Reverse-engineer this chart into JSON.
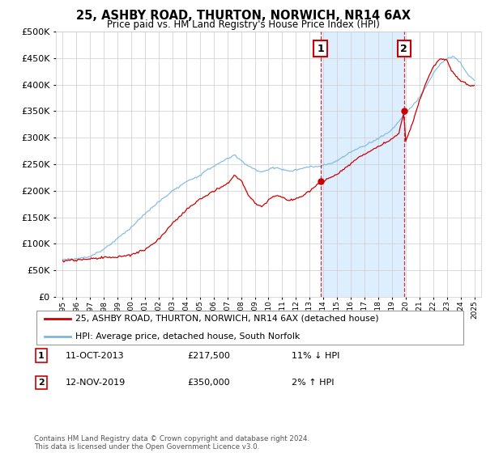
{
  "title": "25, ASHBY ROAD, THURTON, NORWICH, NR14 6AX",
  "subtitle": "Price paid vs. HM Land Registry's House Price Index (HPI)",
  "legend_line1": "25, ASHBY ROAD, THURTON, NORWICH, NR14 6AX (detached house)",
  "legend_line2": "HPI: Average price, detached house, South Norfolk",
  "annotation1_label": "1",
  "annotation1_date": "11-OCT-2013",
  "annotation1_price": "£217,500",
  "annotation1_hpi": "11% ↓ HPI",
  "annotation2_label": "2",
  "annotation2_date": "12-NOV-2019",
  "annotation2_price": "£350,000",
  "annotation2_hpi": "2% ↑ HPI",
  "footnote": "Contains HM Land Registry data © Crown copyright and database right 2024.\nThis data is licensed under the Open Government Licence v3.0.",
  "hpi_color": "#7ab8e0",
  "price_color": "#cc0000",
  "sale1_x": 2013.78,
  "sale1_y": 217500,
  "sale2_x": 2019.87,
  "sale2_y": 350000,
  "ylim": [
    0,
    500000
  ],
  "xlim": [
    1994.5,
    2025.5
  ],
  "yticks": [
    0,
    50000,
    100000,
    150000,
    200000,
    250000,
    300000,
    350000,
    400000,
    450000,
    500000
  ],
  "background_color": "#ffffff",
  "shade_color": "#ddeeff"
}
